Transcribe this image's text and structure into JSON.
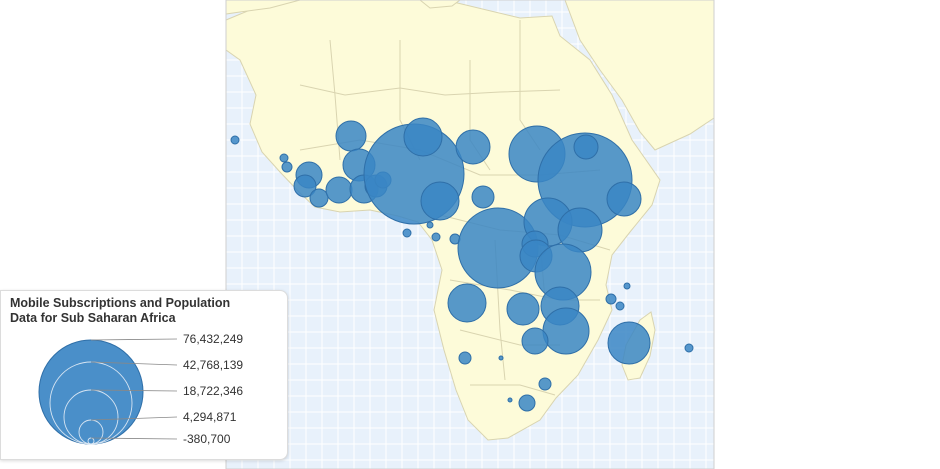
{
  "legend": {
    "title_line1": "Mobile Subscriptions and Population",
    "title_line2": "Data for Sub Saharan Africa",
    "entries": [
      "76,432,249",
      "42,768,139",
      "18,722,346",
      "4,294,871",
      "-380,700"
    ]
  },
  "colors": {
    "ocean": "#e8f1fb",
    "land": "#fdfbd9",
    "border": "#d9d4b0",
    "bubble": "#3a86c4",
    "bubble_stroke": "#2f6fa8",
    "legend_bubble": "#4a8fc9"
  },
  "map_data": {
    "region": "Sub Saharan Africa",
    "symbol": "proportional circles"
  }
}
